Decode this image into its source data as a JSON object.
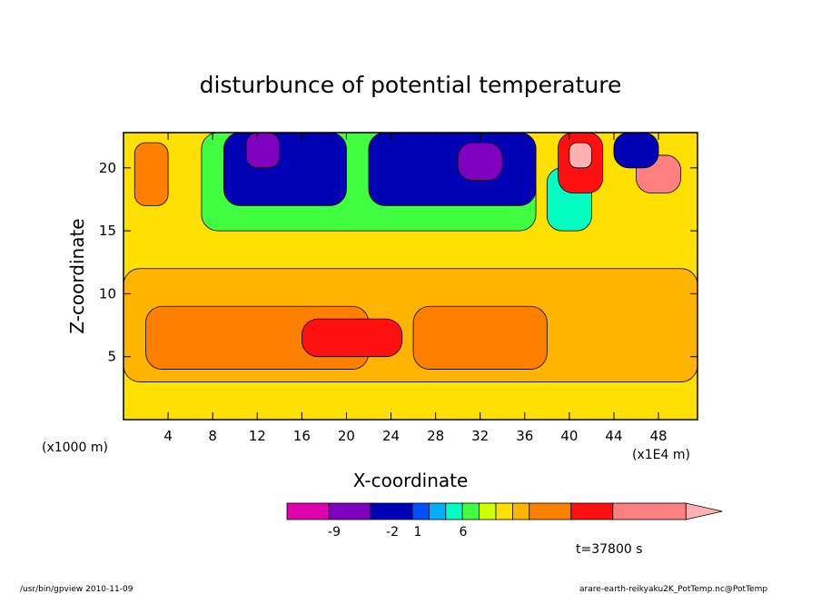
{
  "chart_data": {
    "type": "heatmap",
    "title": "disturbunce of potential temperature",
    "xlabel": "X-coordinate",
    "ylabel": "Z-coordinate",
    "x_unit_left": "(x1000 m)",
    "x_unit_right": "(x1E4 m)",
    "x_ticks": [
      "4",
      "8",
      "12",
      "16",
      "20",
      "24",
      "28",
      "32",
      "36",
      "40",
      "44",
      "48"
    ],
    "y_ticks": [
      "5",
      "10",
      "15",
      "20"
    ],
    "xlim": [
      0,
      51.5
    ],
    "ylim": [
      0,
      22.8
    ],
    "colorbar": {
      "colors": [
        "#e000b0",
        "#8000c0",
        "#0000b4",
        "#0050ff",
        "#00b0ff",
        "#00ffc0",
        "#40ff40",
        "#d0ff00",
        "#ffe000",
        "#ffb400",
        "#ff8000",
        "#ff1010",
        "#ff8080",
        "#ffb0b0"
      ],
      "tick_labels": [
        "-9",
        "-2",
        "1",
        "6"
      ]
    },
    "regions": [
      {
        "x": [
          0,
          51.5
        ],
        "y": [
          0,
          22.8
        ],
        "level": 8
      },
      {
        "x": [
          0,
          51.5
        ],
        "y": [
          3,
          12
        ],
        "level": 9
      },
      {
        "x": [
          2,
          22
        ],
        "y": [
          4,
          9
        ],
        "level": 10
      },
      {
        "x": [
          26,
          38
        ],
        "y": [
          4,
          9
        ],
        "level": 10
      },
      {
        "x": [
          16,
          25
        ],
        "y": [
          5,
          8
        ],
        "level": 11
      },
      {
        "x": [
          1,
          4
        ],
        "y": [
          17,
          22
        ],
        "level": 10
      },
      {
        "x": [
          7,
          37
        ],
        "y": [
          15,
          22.8
        ],
        "level": 6
      },
      {
        "x": [
          9,
          20
        ],
        "y": [
          17,
          22.8
        ],
        "level": 2
      },
      {
        "x": [
          22,
          37
        ],
        "y": [
          17,
          22.8
        ],
        "level": 2
      },
      {
        "x": [
          11,
          14
        ],
        "y": [
          20,
          22.8
        ],
        "level": 1
      },
      {
        "x": [
          30,
          34
        ],
        "y": [
          19,
          22
        ],
        "level": 1
      },
      {
        "x": [
          38,
          42
        ],
        "y": [
          15,
          20
        ],
        "level": 5
      },
      {
        "x": [
          39,
          43
        ],
        "y": [
          18,
          22.8
        ],
        "level": 11
      },
      {
        "x": [
          46,
          50
        ],
        "y": [
          18,
          21
        ],
        "level": 12
      },
      {
        "x": [
          40,
          42
        ],
        "y": [
          20,
          22
        ],
        "level": 13
      },
      {
        "x": [
          44,
          48
        ],
        "y": [
          20,
          22.8
        ],
        "level": 2
      }
    ]
  },
  "info": {
    "time": "t=37800 s",
    "footer_left": "/usr/bin/gpview  2010-11-09",
    "footer_right": "arare-earth-reikyaku2K_PotTemp.nc@PotTemp"
  }
}
